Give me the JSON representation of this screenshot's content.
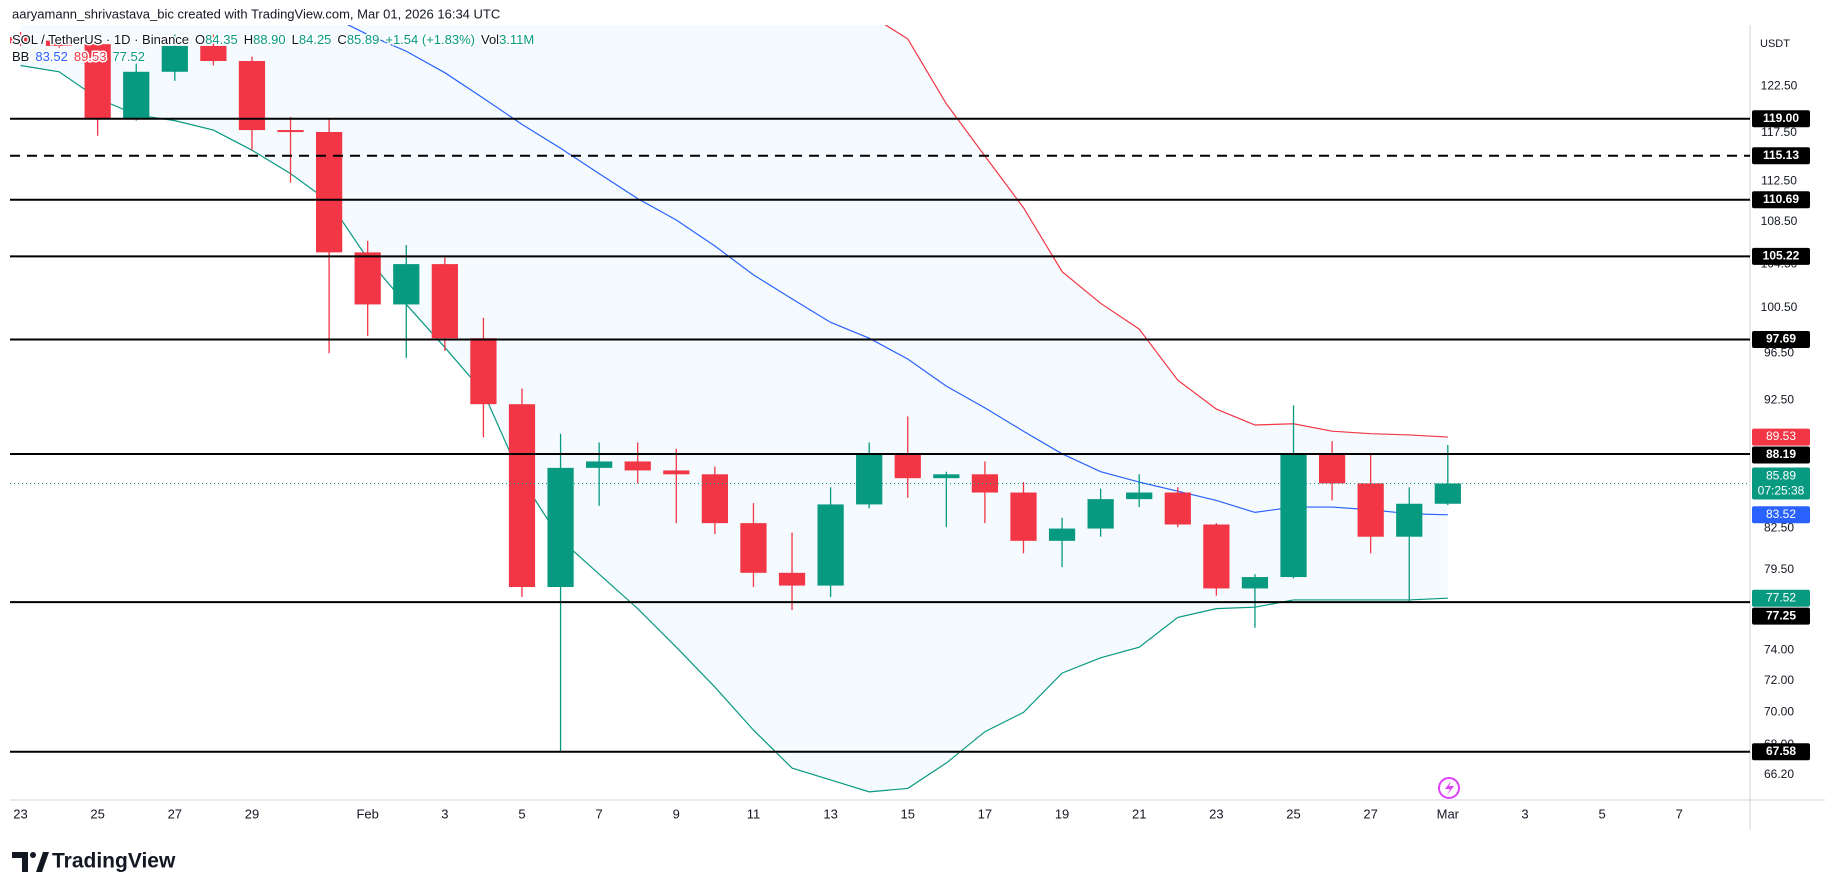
{
  "chart_data": {
    "type": "candlestick",
    "title": "aaryamann_shrivastava_bic created with TradingView.com, Mar 01, 2026 16:34 UTC",
    "symbol": "SOL / TetherUS · 1D · Binance",
    "legend_items": [
      {
        "label": "O",
        "text": "84.35"
      },
      {
        "label": "H",
        "text": "88.90"
      },
      {
        "label": "L",
        "text": "84.25"
      },
      {
        "label": "C",
        "text": "85.89"
      },
      {
        "text": "+1.54 (+1.83%)"
      },
      {
        "label": "Vol",
        "text": "3.11M"
      }
    ],
    "indicator": "BB",
    "currency": "USDT",
    "countdown": "07:25:38",
    "brand": "TradingView",
    "up_color": "#089981",
    "down_color": "#f23645",
    "band_color": "#2196f3",
    "x": [
      "2026-01-23",
      "2026-01-24",
      "2026-01-25",
      "2026-01-26",
      "2026-01-27",
      "2026-01-28",
      "2026-01-29",
      "2026-01-30",
      "2026-01-31",
      "2026-02-01",
      "2026-02-02",
      "2026-02-03",
      "2026-02-04",
      "2026-02-05",
      "2026-02-06",
      "2026-02-07",
      "2026-02-08",
      "2026-02-09",
      "2026-02-10",
      "2026-02-11",
      "2026-02-12",
      "2026-02-13",
      "2026-02-14",
      "2026-02-15",
      "2026-02-16",
      "2026-02-17",
      "2026-02-18",
      "2026-02-19",
      "2026-02-20",
      "2026-02-21",
      "2026-02-22",
      "2026-02-23",
      "2026-02-24",
      "2026-02-25",
      "2026-02-26",
      "2026-02-27",
      "2026-02-28",
      "2026-03-01"
    ],
    "open": [
      128.0,
      127.6,
      127.2,
      119.0,
      124.1,
      127.0,
      125.3,
      117.8,
      117.6,
      105.6,
      100.8,
      104.5,
      97.8,
      92.2,
      78.3,
      87.1,
      87.6,
      86.9,
      86.6,
      82.9,
      79.3,
      78.4,
      84.3,
      88.2,
      86.3,
      86.6,
      85.2,
      81.6,
      82.5,
      84.7,
      85.2,
      82.8,
      78.2,
      79.0,
      88.2,
      85.9,
      81.9,
      84.35
    ],
    "high": [
      128.6,
      128.0,
      128.3,
      125.0,
      128.3,
      128.3,
      125.8,
      119.2,
      119.0,
      106.7,
      106.3,
      105.1,
      99.6,
      93.5,
      89.8,
      89.1,
      89.1,
      88.6,
      87.2,
      84.4,
      82.2,
      85.6,
      89.1,
      91.2,
      86.8,
      87.6,
      86.0,
      83.3,
      85.5,
      86.6,
      85.6,
      82.9,
      79.2,
      92.1,
      89.2,
      88.2,
      85.6,
      88.9
    ],
    "low": [
      127.0,
      126.8,
      117.2,
      118.8,
      123.1,
      124.8,
      115.7,
      112.4,
      96.5,
      98.0,
      96.1,
      96.7,
      89.5,
      77.6,
      67.6,
      84.2,
      85.9,
      82.9,
      82.1,
      78.3,
      76.7,
      77.6,
      84.0,
      84.8,
      82.6,
      82.9,
      80.7,
      79.7,
      81.9,
      84.1,
      82.6,
      77.7,
      75.5,
      78.9,
      84.6,
      80.7,
      77.2,
      84.25
    ],
    "close": [
      127.3,
      127.0,
      119.0,
      124.1,
      127.0,
      125.3,
      117.8,
      117.6,
      105.6,
      100.8,
      104.5,
      97.8,
      92.2,
      78.3,
      87.1,
      87.6,
      86.9,
      86.6,
      82.9,
      79.3,
      78.4,
      84.3,
      88.2,
      86.3,
      86.6,
      85.2,
      81.6,
      82.5,
      84.7,
      85.2,
      82.8,
      78.2,
      79.0,
      88.2,
      85.9,
      81.9,
      84.35,
      85.89
    ],
    "series": [
      {
        "color": "#2962ff",
        "values": [
          null,
          null,
          null,
          null,
          null,
          null,
          null,
          null,
          130.5,
          128.3,
          126.4,
          124.0,
          121.2,
          118.4,
          115.9,
          113.3,
          110.8,
          108.7,
          106.2,
          103.5,
          101.3,
          99.2,
          97.8,
          96.0,
          93.7,
          91.9,
          90.0,
          88.2,
          86.8,
          86.0,
          85.3,
          84.6,
          83.7,
          84.1,
          84.1,
          83.9,
          83.6,
          83.52
        ]
      },
      {
        "color": "#f23645",
        "values": [
          null,
          null,
          null,
          null,
          null,
          null,
          null,
          null,
          null,
          null,
          null,
          null,
          null,
          null,
          null,
          null,
          null,
          null,
          null,
          null,
          null,
          null,
          130.6,
          127.8,
          120.6,
          115.1,
          109.9,
          103.8,
          100.9,
          98.6,
          94.2,
          91.8,
          90.5,
          90.6,
          90.0,
          89.8,
          89.7,
          89.53
        ]
      },
      {
        "color": "#089981",
        "values": [
          124.8,
          124.1,
          121.2,
          119.4,
          118.8,
          117.8,
          115.7,
          113.3,
          110.5,
          105.0,
          100.8,
          97.0,
          93.2,
          86.2,
          81.7,
          79.2,
          76.8,
          74.2,
          71.6,
          68.9,
          66.6,
          65.9,
          65.2,
          65.4,
          66.9,
          68.8,
          70.0,
          72.5,
          73.5,
          74.2,
          76.2,
          76.8,
          76.9,
          77.4,
          77.4,
          77.4,
          77.4,
          77.52
        ]
      }
    ],
    "xlim": [
      "2026-01-22T17:28:00Z",
      "2026-03-08T20:00:00Z"
    ],
    "xticks": [
      {
        "value": "2026-01-23",
        "label": "23"
      },
      {
        "value": "2026-01-25",
        "label": "25"
      },
      {
        "value": "2026-01-27",
        "label": "27"
      },
      {
        "value": "2026-01-29",
        "label": "29"
      },
      {
        "value": "2026-02-01",
        "label": "Feb"
      },
      {
        "value": "2026-02-03",
        "label": "3"
      },
      {
        "value": "2026-02-05",
        "label": "5"
      },
      {
        "value": "2026-02-07",
        "label": "7"
      },
      {
        "value": "2026-02-09",
        "label": "9"
      },
      {
        "value": "2026-02-11",
        "label": "11"
      },
      {
        "value": "2026-02-13",
        "label": "13"
      },
      {
        "value": "2026-02-15",
        "label": "15"
      },
      {
        "value": "2026-02-17",
        "label": "17"
      },
      {
        "value": "2026-02-19",
        "label": "19"
      },
      {
        "value": "2026-02-21",
        "label": "21"
      },
      {
        "value": "2026-02-23",
        "label": "23"
      },
      {
        "value": "2026-02-25",
        "label": "25"
      },
      {
        "value": "2026-02-27",
        "label": "27"
      },
      {
        "value": "2026-03-01",
        "label": "Mar"
      },
      {
        "value": "2026-03-03",
        "label": "3"
      },
      {
        "value": "2026-03-05",
        "label": "5"
      },
      {
        "value": "2026-03-07",
        "label": "7"
      }
    ],
    "log": true,
    "ylim": [
      64.9,
      129.4
    ],
    "yticks": [
      {
        "value": 122.5,
        "label": "122.50"
      },
      {
        "value": 117.5,
        "label": "117.50"
      },
      {
        "value": 112.5,
        "label": "112.50"
      },
      {
        "value": 108.5,
        "label": "108.50"
      },
      {
        "value": 104.5,
        "label": "104.50"
      },
      {
        "value": 100.5,
        "label": "100.50"
      },
      {
        "value": 96.5,
        "label": "96.50"
      },
      {
        "value": 92.5,
        "label": "92.50"
      },
      {
        "value": 82.5,
        "label": "82.50"
      },
      {
        "value": 79.5,
        "label": "79.50"
      },
      {
        "value": 74,
        "label": "74.00"
      },
      {
        "value": 72,
        "label": "72.00"
      },
      {
        "value": 70,
        "label": "70.00"
      },
      {
        "value": 68,
        "label": "68.00"
      },
      {
        "value": 66.2,
        "label": "66.20"
      }
    ],
    "levels": [
      {
        "value": 119,
        "label": "119.00",
        "style": "solid"
      },
      {
        "value": 115.13,
        "label": "115.13",
        "style": "dashed"
      },
      {
        "value": 110.69,
        "label": "110.69",
        "style": "solid"
      },
      {
        "value": 105.22,
        "label": "105.22",
        "style": "solid"
      },
      {
        "value": 97.69,
        "label": "97.69",
        "style": "solid"
      },
      {
        "value": 88.19,
        "label": "88.19",
        "style": "solid"
      },
      {
        "value": 77.25,
        "label": "77.25",
        "style": "solid"
      },
      {
        "value": 67.58,
        "label": "67.58",
        "style": "solid"
      }
    ]
  }
}
